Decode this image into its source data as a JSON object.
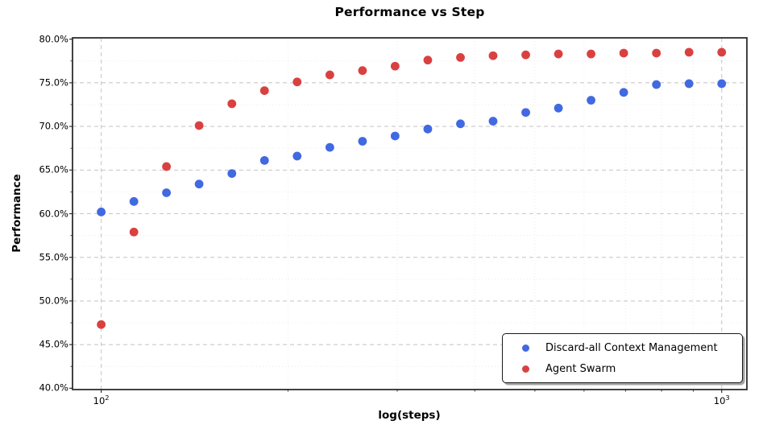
{
  "chart_data": {
    "type": "scatter",
    "title": "Performance vs Step",
    "xlabel": "log(steps)",
    "ylabel": "Performance",
    "x_scale": "log",
    "xlim": [
      89.9,
      1098
    ],
    "ylim": [
      39.85,
      80.15
    ],
    "grid": "both",
    "legend_position": "lower right",
    "x": [
      100,
      112.9,
      127.4,
      143.8,
      162.4,
      183.3,
      206.9,
      233.6,
      263.7,
      297.6,
      336.0,
      379.3,
      428.1,
      483.3,
      545.6,
      615.8,
      695.2,
      784.8,
      885.9,
      1000
    ],
    "series": [
      {
        "name": "Discard-all Context Management",
        "color": "#4169e1",
        "values": [
          60.2,
          61.4,
          62.4,
          63.4,
          64.6,
          66.1,
          66.6,
          67.6,
          68.3,
          68.9,
          69.7,
          70.3,
          70.6,
          71.6,
          72.1,
          73.0,
          73.9,
          74.8,
          74.9,
          74.9
        ]
      },
      {
        "name": "Agent Swarm",
        "color": "#d94141",
        "values": [
          47.3,
          57.9,
          65.4,
          70.1,
          72.6,
          74.1,
          75.1,
          75.9,
          76.4,
          76.9,
          77.6,
          77.9,
          78.1,
          78.2,
          78.3,
          78.3,
          78.4,
          78.4,
          78.5,
          78.5
        ]
      }
    ],
    "yticks": [
      {
        "value": 40,
        "label": "40.0%"
      },
      {
        "value": 45,
        "label": "45.0%"
      },
      {
        "value": 50,
        "label": "50.0%"
      },
      {
        "value": 55,
        "label": "55.0%"
      },
      {
        "value": 60,
        "label": "60.0%"
      },
      {
        "value": 65,
        "label": "65.0%"
      },
      {
        "value": 70,
        "label": "70.0%"
      },
      {
        "value": 75,
        "label": "75.0%"
      },
      {
        "value": 80,
        "label": "80.0%"
      }
    ],
    "xticks": [
      {
        "value": 100,
        "base": "10",
        "exp": "2"
      },
      {
        "value": 1000,
        "base": "10",
        "exp": "3"
      }
    ],
    "x_minor_ticks": [
      200,
      300,
      400,
      500,
      600,
      700,
      800,
      900
    ],
    "y_minor_step": 2.5,
    "marker_radius_px": 5.4,
    "colors": {
      "grid_major": "#c9c9c9",
      "grid_minor": "#ececec",
      "spine": "#2e2e2e",
      "text": "#000000"
    }
  }
}
